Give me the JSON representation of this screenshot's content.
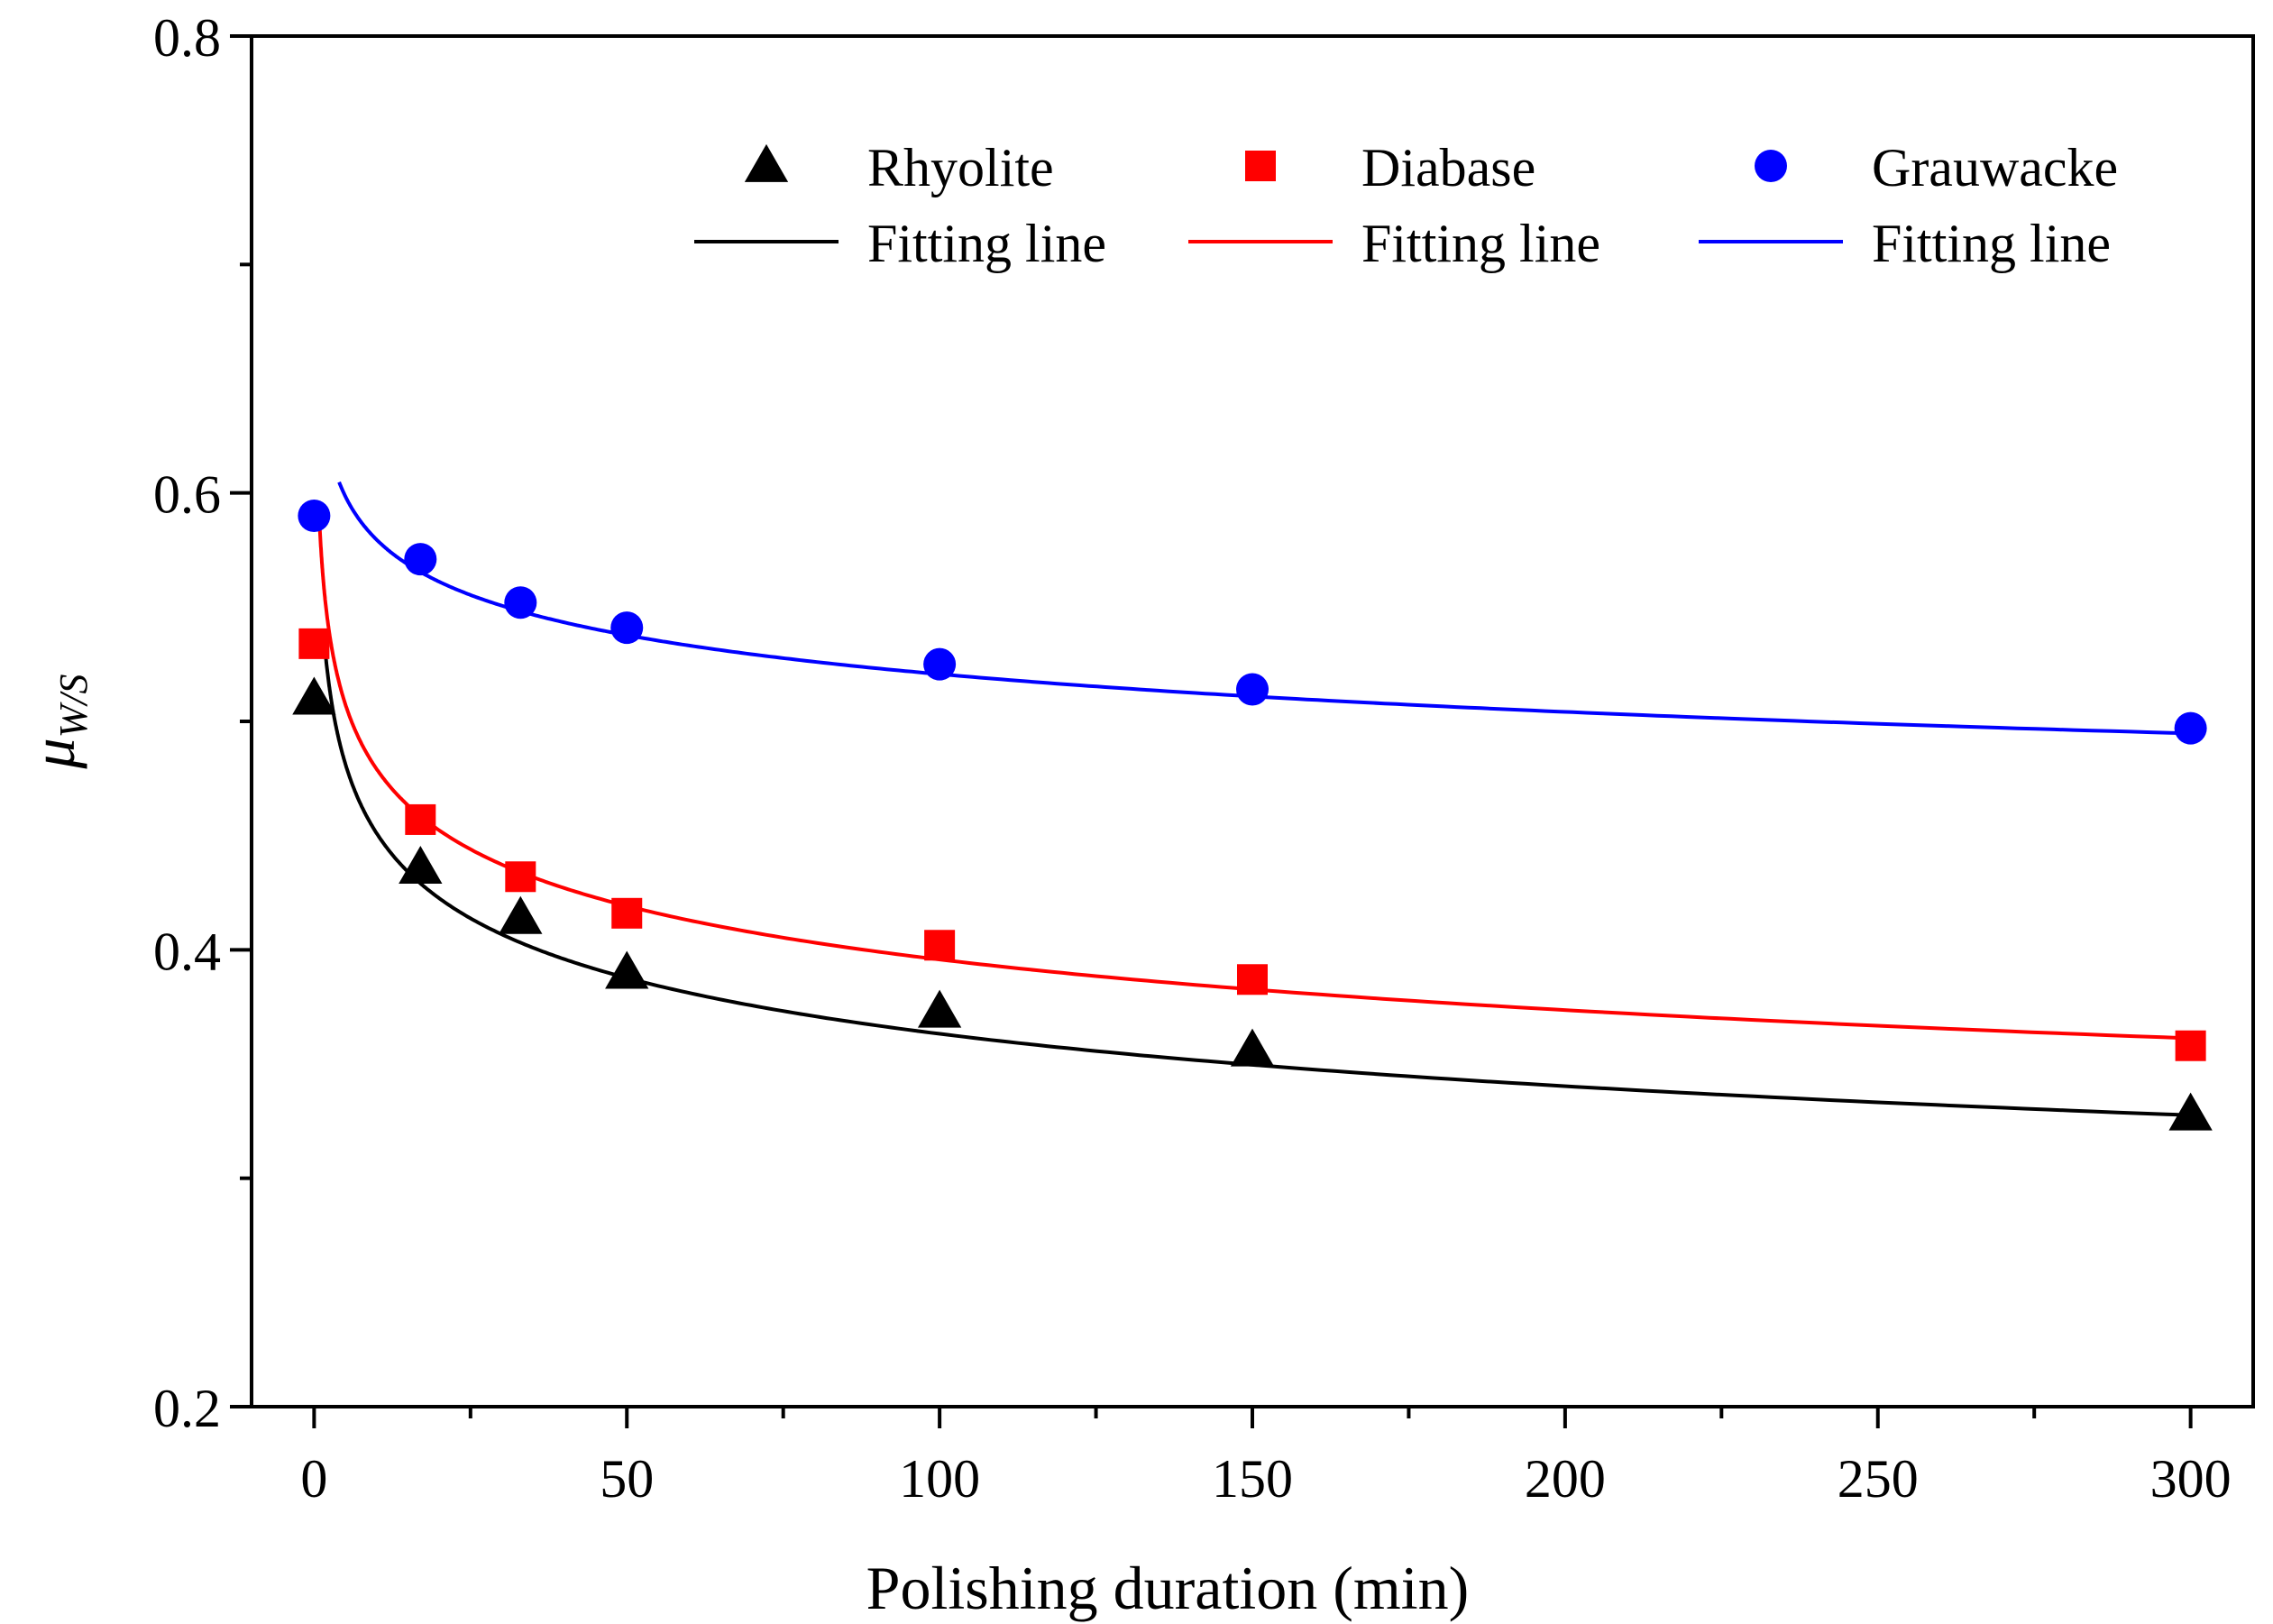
{
  "chart_data": {
    "type": "scatter",
    "title": "",
    "xlabel": "Polishing duration (min)",
    "ylabel": {
      "main": "μ",
      "sub": "W/S"
    },
    "xlim": [
      -10,
      310
    ],
    "ylim": [
      0.2,
      0.8
    ],
    "xticks": [
      0,
      50,
      100,
      150,
      200,
      250,
      300
    ],
    "xtick_labels": [
      "0",
      "50",
      "100",
      "150",
      "200",
      "250",
      "300"
    ],
    "xminor": [
      25,
      75,
      125,
      175,
      225,
      275
    ],
    "yticks": [
      0.2,
      0.4,
      0.6,
      0.8
    ],
    "ytick_labels": [
      "0.2",
      "0.4",
      "0.6",
      "0.8"
    ],
    "yminor": [
      0.3,
      0.5,
      0.7
    ],
    "grid": false,
    "legend_position": "top-right",
    "series": [
      {
        "name": "Rhyolite",
        "marker": "triangle",
        "color": "#000000",
        "x": [
          0,
          17,
          33,
          50,
          100,
          150,
          300
        ],
        "values": [
          0.51,
          0.436,
          0.414,
          0.39,
          0.373,
          0.356,
          0.328
        ],
        "fit": {
          "label": "Fitting line",
          "a": 0.56,
          "b": 0.094,
          "x_start": 1.5,
          "x_end": 300
        }
      },
      {
        "name": "Diabase",
        "marker": "square",
        "color": "#ff0000",
        "x": [
          0,
          17,
          33,
          50,
          100,
          150,
          300
        ],
        "values": [
          0.534,
          0.457,
          0.432,
          0.416,
          0.402,
          0.387,
          0.358
        ],
        "fit": {
          "label": "Fitting line",
          "a": 0.58,
          "b": 0.083,
          "x_start": 0.8,
          "x_end": 300
        }
      },
      {
        "name": "Grauwacke",
        "marker": "circle",
        "color": "#0000ff",
        "x": [
          0,
          17,
          33,
          50,
          100,
          150,
          300
        ],
        "values": [
          0.59,
          0.571,
          0.552,
          0.541,
          0.525,
          0.514,
          0.497
        ],
        "fit": {
          "label": "Fitting line",
          "a": 0.645,
          "b": 0.0465,
          "x_start": 4,
          "x_end": 300
        }
      }
    ]
  }
}
